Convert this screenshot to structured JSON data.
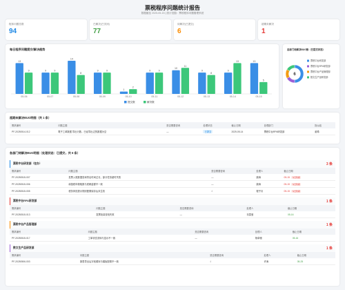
{
  "header": {
    "title": "票税程序问题统计报告",
    "subtitle": "数据截至 2025-05-15 | 统计范围：票税程序问题管理系统"
  },
  "kpis": [
    {
      "label": "程序问题总数",
      "value": 94,
      "color": "#1e88e5"
    },
    {
      "label": "已解决(已关闭)",
      "value": 77,
      "color": "#43a047"
    },
    {
      "label": "待解决(已提交)",
      "value": 6,
      "color": "#fb8c00"
    },
    {
      "label": "超期未解决",
      "value": 1,
      "color": "#e53935"
    }
  ],
  "daily_chart": {
    "type": "bar",
    "title": "每日程序问题提交/解决趋势",
    "categories": [
      "05-06",
      "05-07",
      "05-08",
      "05-09",
      "05-10",
      "05-11",
      "05-12",
      "05-13",
      "05-14",
      "05-15"
    ],
    "series": [
      {
        "name": "提交数",
        "color": "#3a8ee6",
        "values": [
          13,
          9,
          14,
          9,
          1,
          9,
          10,
          9,
          9,
          13
        ]
      },
      {
        "name": "解决数",
        "color": "#3cc77a",
        "values": [
          9,
          9,
          8,
          9,
          2,
          9,
          11,
          8,
          13,
          5
        ]
      }
    ]
  },
  "dept_chart": {
    "type": "pie",
    "title": "各部门待解决BUG数（已提交状态）",
    "total": 6,
    "categories": [
      "票税中台研发部",
      "票税中台RPA研发部",
      "票税中台产品管理部",
      "数文生产品研发部"
    ],
    "values": [
      3,
      1,
      1,
      1
    ],
    "colors": [
      "#3a8ee6",
      "#9c5fd6",
      "#f39c12",
      "#3cc77a"
    ]
  },
  "overdue": {
    "title": "超期未解决BUG明细（共 1 条）",
    "columns": [
      "需求编号",
      "问题主题",
      "是否需要咨询",
      "处理状态",
      "截止日期",
      "处理部门",
      "指派给"
    ],
    "rows": [
      [
        "PF-20250514-012",
        "電子工单数据 导出行数，已经导出过的数据为空",
        "—",
        "已提交",
        "2025-05-14",
        "票税中台RPA研发部",
        "谢希"
      ]
    ]
  },
  "pending": {
    "title": "各部门待解决BUG明细（处理状态：已提交，共 6 条）",
    "columns": [
      "需求编号",
      "问题主题",
      "是否需要咨询",
      "处理人",
      "截止日期"
    ],
    "groups": [
      {
        "name": "票税中台研发部（在办）",
        "count": "3 条",
        "color": "#1e88e5",
        "rows": [
          {
            "cells": [
              "PF-20250515-007",
              "发票入账数据查询导出时间过长，部分任务超时失败",
              "—",
              "唐涛",
              "05-15"
            ],
            "tag": "今日到期"
          },
          {
            "cells": [
              "PF-20250515-006",
              "增值税申报取数与底稿金额不一致",
              "—",
              "唐涛",
              "05-15"
            ],
            "tag": "今日到期"
          },
          {
            "cells": [
              "PF-20250515-005",
              "税务风险提示规则配置保存后未生效",
              "√",
              "程子月",
              "05-15"
            ],
            "tag": "今日到期"
          }
        ]
      },
      {
        "name": "票税中台RPA研发部",
        "count": "1 条",
        "color": "#e53935",
        "rows": [
          {
            "cells": [
              "PF-20250515-013",
              "发票批量查验失败",
              "—",
              "韦雪莹",
              "05-16"
            ]
          }
        ]
      },
      {
        "name": "票税中台产品管理部",
        "count": "1 条",
        "color": "#fb8c00",
        "rows": [
          {
            "cells": [
              "PF-20250515-017",
              "工单状态流转与显示不一致",
              "—",
              "杨卓雅",
              "05-16"
            ]
          }
        ]
      },
      {
        "name": "数文生产品研发部",
        "count": "1 条",
        "color": "#9c5fd6",
        "rows": [
          {
            "cells": [
              "PF-20250506-003",
              "报表导出后字段顺序与模板配置不一致",
              "√",
              "许涛",
              "05-25"
            ]
          }
        ]
      }
    ]
  }
}
